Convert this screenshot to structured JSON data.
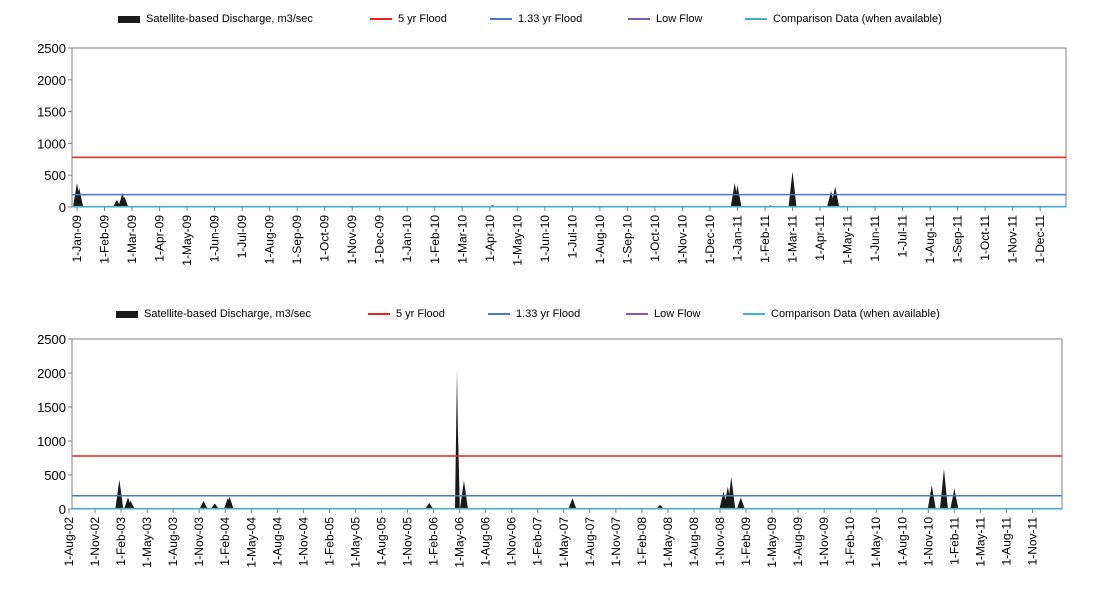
{
  "legend": {
    "discharge": "Satellite-based Discharge, m3/sec",
    "flood5": "5 yr Flood",
    "flood133": "1.33 yr Flood",
    "lowflow": "Low Flow",
    "comparison": "Comparison Data (when available)"
  },
  "colors": {
    "discharge": "#1a1a1a",
    "flood5": "#e8231f",
    "flood133": "#4a7ab8",
    "lowflow": "#7f5ba8",
    "comparison": "#3fb2c9",
    "frame": "#808080"
  },
  "chart_data": [
    {
      "type": "area",
      "ylim": [
        0,
        2500
      ],
      "yticks": [
        0,
        500,
        1000,
        1500,
        2000,
        2500
      ],
      "x_categories": [
        "1-Jan-09",
        "1-Feb-09",
        "1-Mar-09",
        "1-Apr-09",
        "1-May-09",
        "1-Jun-09",
        "1-Jul-09",
        "1-Aug-09",
        "1-Sep-09",
        "1-Oct-09",
        "1-Nov-09",
        "1-Dec-09",
        "1-Jan-10",
        "1-Feb-10",
        "1-Mar-10",
        "1-Apr-10",
        "1-May-10",
        "1-Jun-10",
        "1-Jul-10",
        "1-Aug-10",
        "1-Sep-10",
        "1-Oct-10",
        "1-Nov-10",
        "1-Dec-10",
        "1-Jan-11",
        "1-Feb-11",
        "1-Mar-11",
        "1-Apr-11",
        "1-May-11",
        "1-Jun-11",
        "1-Jul-11",
        "1-Aug-11",
        "1-Sep-11",
        "1-Oct-11",
        "1-Nov-11",
        "1-Dec-11"
      ],
      "flood5": 780,
      "flood133": 195,
      "lowflow": 5,
      "comparison": 5,
      "discharge_peaks": [
        {
          "month": 0.0,
          "value": 380
        },
        {
          "month": 0.08,
          "value": 300
        },
        {
          "month": 1.45,
          "value": 110
        },
        {
          "month": 1.65,
          "value": 220
        },
        {
          "month": 1.72,
          "value": 160
        },
        {
          "month": 15.1,
          "value": 30
        },
        {
          "month": 23.9,
          "value": 380
        },
        {
          "month": 24.0,
          "value": 340
        },
        {
          "month": 25.2,
          "value": 25
        },
        {
          "month": 26.0,
          "value": 560
        },
        {
          "month": 27.4,
          "value": 250
        },
        {
          "month": 27.55,
          "value": 320
        }
      ]
    },
    {
      "type": "area",
      "ylim": [
        0,
        2500
      ],
      "yticks": [
        0,
        500,
        1000,
        1500,
        2000,
        2500
      ],
      "x_categories": [
        "1-Aug-02",
        "1-Nov-02",
        "1-Feb-03",
        "1-May-03",
        "1-Aug-03",
        "1-Nov-03",
        "1-Feb-04",
        "1-May-04",
        "1-Aug-04",
        "1-Nov-04",
        "1-Feb-05",
        "1-May-05",
        "1-Aug-05",
        "1-Nov-05",
        "1-Feb-06",
        "1-May-06",
        "1-Aug-06",
        "1-Nov-06",
        "1-Feb-07",
        "1-May-07",
        "1-Aug-07",
        "1-Nov-07",
        "1-Feb-08",
        "1-May-08",
        "1-Aug-08",
        "1-Nov-08",
        "1-Feb-09",
        "1-May-09",
        "1-Aug-09",
        "1-Nov-09",
        "1-Feb-10",
        "1-May-10",
        "1-Aug-10",
        "1-Nov-10",
        "1-Feb-11",
        "1-May-11",
        "1-Aug-11",
        "1-Nov-11"
      ],
      "flood5": 780,
      "flood133": 195,
      "lowflow": 5,
      "comparison": 5,
      "discharge_peaks": [
        {
          "month": 5.8,
          "value": 430
        },
        {
          "month": 6.8,
          "value": 170
        },
        {
          "month": 7.1,
          "value": 120
        },
        {
          "month": 15.5,
          "value": 120
        },
        {
          "month": 16.8,
          "value": 80
        },
        {
          "month": 18.3,
          "value": 160
        },
        {
          "month": 18.5,
          "value": 180
        },
        {
          "month": 41.5,
          "value": 90
        },
        {
          "month": 44.7,
          "value": 2050
        },
        {
          "month": 44.8,
          "value": 1200
        },
        {
          "month": 45.5,
          "value": 420
        },
        {
          "month": 58.0,
          "value": 160
        },
        {
          "month": 68.1,
          "value": 60
        },
        {
          "month": 75.4,
          "value": 260
        },
        {
          "month": 75.9,
          "value": 330
        },
        {
          "month": 76.3,
          "value": 470
        },
        {
          "month": 77.4,
          "value": 170
        },
        {
          "month": 99.4,
          "value": 350
        },
        {
          "month": 100.8,
          "value": 590
        },
        {
          "month": 102.0,
          "value": 300
        }
      ]
    }
  ]
}
